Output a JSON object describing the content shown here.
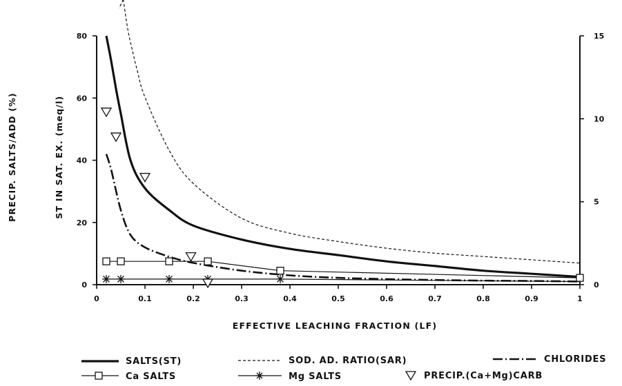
{
  "chart_data": {
    "type": "line",
    "xlabel": "EFFECTIVE LEACHING FRACTION (LF)",
    "ylabel_outer": "PRECIP. SALTS/ADD (%)",
    "ylabel_inner": "ST IN SAT. EX. (meq/l)",
    "xlim": [
      0,
      1
    ],
    "ylim_left": [
      0,
      80
    ],
    "ylim_right": [
      0,
      15
    ],
    "x_ticks": [
      "0",
      "0.1",
      "0.2",
      "0.3",
      "0.4",
      "0.5",
      "0.6",
      "0.7",
      "0.8",
      "0.9",
      "1"
    ],
    "y_left_ticks": [
      "0",
      "20",
      "40",
      "60",
      "80"
    ],
    "y_right_ticks": [
      "0",
      "5",
      "10",
      "15"
    ],
    "grid": false,
    "legend_position": "bottom",
    "series": [
      {
        "name": "SALTS(ST)",
        "style": "solid-thick",
        "axis": "left",
        "x": [
          0.02,
          0.03,
          0.04,
          0.05,
          0.07,
          0.1,
          0.15,
          0.2,
          0.3,
          0.4,
          0.5,
          0.6,
          0.7,
          0.8,
          0.9,
          1.0
        ],
        "y": [
          80,
          72,
          63,
          55,
          40,
          31,
          24,
          19,
          14.5,
          11.5,
          9.5,
          7.5,
          6,
          4.5,
          3.5,
          2.5
        ]
      },
      {
        "name": "SOD. AD. RATIO(SAR)",
        "style": "dashed",
        "axis": "right",
        "x": [
          0.055,
          0.065,
          0.075,
          0.085,
          0.1,
          0.15,
          0.2,
          0.3,
          0.4,
          0.5,
          0.6,
          0.7,
          0.8,
          0.9,
          1.0
        ],
        "y": [
          17.2,
          15.3,
          14.0,
          12.8,
          11.3,
          8.1,
          6.1,
          4.0,
          3.1,
          2.6,
          2.2,
          1.9,
          1.7,
          1.5,
          1.3
        ]
      },
      {
        "name": "CHLORIDES",
        "style": "dash-dot",
        "axis": "left",
        "x": [
          0.02,
          0.03,
          0.05,
          0.07,
          0.1,
          0.15,
          0.2,
          0.3,
          0.4,
          0.5,
          0.6,
          0.7,
          0.8,
          0.9,
          1.0
        ],
        "y": [
          42,
          37,
          24,
          16,
          12,
          9,
          7,
          4.5,
          3,
          2.2,
          1.8,
          1.5,
          1.3,
          1.2,
          1.0
        ]
      },
      {
        "name": "Ca SALTS",
        "style": "solid-thin-square",
        "axis": "left",
        "x": [
          0.02,
          0.05,
          0.15,
          0.23,
          0.38,
          1.0
        ],
        "y": [
          7.5,
          7.5,
          7.5,
          7.5,
          4.5,
          2.2
        ]
      },
      {
        "name": "Mg SALTS",
        "style": "solid-thin-star",
        "axis": "left",
        "x": [
          0.02,
          0.05,
          0.15,
          0.23,
          0.38,
          1.0
        ],
        "y": [
          1.8,
          1.8,
          1.8,
          1.8,
          1.8,
          1.0
        ]
      },
      {
        "name": "PRECIP.(Ca+Mg)CARB",
        "style": "triangle-markers",
        "axis": "left",
        "x": [
          0.02,
          0.04,
          0.1,
          0.195,
          0.23
        ],
        "y": [
          55,
          47,
          34,
          8.5,
          0
        ]
      }
    ]
  }
}
